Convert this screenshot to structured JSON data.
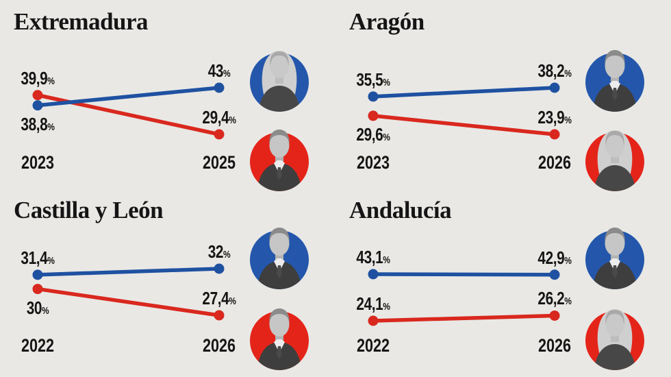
{
  "background_color": "#e9e8e5",
  "text_color": "#151515",
  "party_colors": {
    "blue": "#1f51a1",
    "red": "#d9281e"
  },
  "avatar_disc_colors": {
    "blue": "#2457ab",
    "red": "#e52419"
  },
  "chart_data": [
    {
      "type": "line",
      "title": "Extremadura",
      "x": [
        "2023",
        "2025"
      ],
      "series": [
        {
          "name": "blue-candidate",
          "color": "blue",
          "values": [
            38.8,
            43.0
          ],
          "labels": [
            "38,8%",
            "43%"
          ],
          "portrait": "woman-portrait"
        },
        {
          "name": "red-candidate",
          "color": "red",
          "values": [
            39.9,
            29.4
          ],
          "labels": [
            "39,9%",
            "29,4%"
          ],
          "portrait": "man-portrait"
        }
      ]
    },
    {
      "type": "line",
      "title": "Aragón",
      "x": [
        "2023",
        "2026"
      ],
      "series": [
        {
          "name": "blue-candidate",
          "color": "blue",
          "values": [
            35.5,
            38.2
          ],
          "labels": [
            "35,5%",
            "38,2%"
          ],
          "portrait": "man-portrait"
        },
        {
          "name": "red-candidate",
          "color": "red",
          "values": [
            29.6,
            23.9
          ],
          "labels": [
            "29,6%",
            "23,9%"
          ],
          "portrait": "woman-portrait"
        }
      ]
    },
    {
      "type": "line",
      "title": "Castilla y León",
      "x": [
        "2022",
        "2026"
      ],
      "series": [
        {
          "name": "blue-candidate",
          "color": "blue",
          "values": [
            31.4,
            32.0
          ],
          "labels": [
            "31,4%",
            "32%"
          ],
          "portrait": "man-portrait"
        },
        {
          "name": "red-candidate",
          "color": "red",
          "values": [
            30.0,
            27.4
          ],
          "labels": [
            "30%",
            "27,4%"
          ],
          "portrait": "man-portrait"
        }
      ]
    },
    {
      "type": "line",
      "title": "Andalucía",
      "x": [
        "2022",
        "2026"
      ],
      "series": [
        {
          "name": "blue-candidate",
          "color": "blue",
          "values": [
            43.1,
            42.9
          ],
          "labels": [
            "43,1%",
            "42,9%"
          ],
          "portrait": "man-portrait"
        },
        {
          "name": "red-candidate",
          "color": "red",
          "values": [
            24.1,
            26.2
          ],
          "labels": [
            "24,1%",
            "26,2%"
          ],
          "portrait": "woman-portrait"
        }
      ]
    }
  ]
}
